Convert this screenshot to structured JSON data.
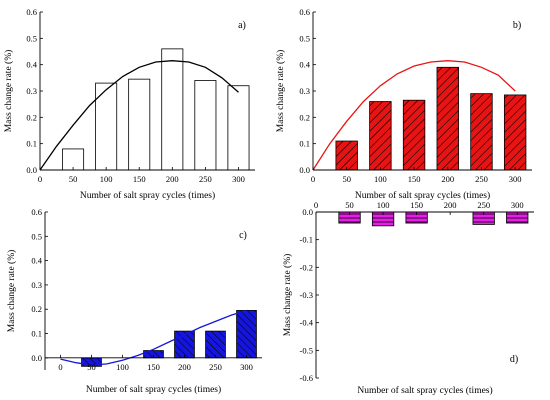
{
  "chart_data": [
    {
      "panel_label": "a)",
      "type": "bar",
      "xlabel": "Number of salt spray cycles (times)",
      "ylabel": "Mass change rate (%)",
      "x_ticks": [
        0,
        50,
        100,
        150,
        200,
        250,
        300
      ],
      "y_ticks": [
        0.0,
        0.1,
        0.2,
        0.3,
        0.4,
        0.5,
        0.6
      ],
      "xlim": [
        0,
        325
      ],
      "ylim": [
        0,
        0.6
      ],
      "bars": {
        "x": [
          50,
          100,
          150,
          200,
          250,
          300
        ],
        "values": [
          0.08,
          0.33,
          0.345,
          0.46,
          0.34,
          0.32
        ]
      },
      "fit": {
        "x": [
          0,
          25,
          50,
          75,
          100,
          125,
          150,
          175,
          200,
          225,
          250,
          275,
          300
        ],
        "y": [
          0.0,
          0.09,
          0.17,
          0.245,
          0.305,
          0.355,
          0.39,
          0.41,
          0.415,
          0.41,
          0.39,
          0.35,
          0.295
        ]
      },
      "style": {
        "bar_fill": "#ffffff",
        "bar_stroke": "#000000",
        "hatch": false,
        "fit_color": "#000000"
      }
    },
    {
      "panel_label": "b)",
      "type": "bar",
      "xlabel": "Number of salt spray cycles (times)",
      "ylabel": "Mass change rate (%)",
      "x_ticks": [
        0,
        50,
        100,
        150,
        200,
        250,
        300
      ],
      "y_ticks": [
        0.0,
        0.1,
        0.2,
        0.3,
        0.4,
        0.5,
        0.6
      ],
      "xlim": [
        0,
        325
      ],
      "ylim": [
        0,
        0.6
      ],
      "bars": {
        "x": [
          50,
          100,
          150,
          200,
          250,
          300
        ],
        "values": [
          0.11,
          0.26,
          0.265,
          0.39,
          0.29,
          0.285
        ]
      },
      "fit": {
        "x": [
          0,
          25,
          50,
          75,
          100,
          125,
          150,
          175,
          200,
          225,
          250,
          275,
          300
        ],
        "y": [
          0.0,
          0.1,
          0.185,
          0.26,
          0.32,
          0.365,
          0.395,
          0.41,
          0.415,
          0.41,
          0.39,
          0.36,
          0.3
        ]
      },
      "style": {
        "bar_fill": "#e81414",
        "bar_stroke": "#000000",
        "hatch": true,
        "fit_color": "#e81414"
      }
    },
    {
      "panel_label": "c)",
      "type": "bar",
      "xlabel": "Number of salt spray cycles (times)",
      "ylabel": "Mass change rate (%)",
      "x_ticks": [
        0,
        50,
        100,
        150,
        200,
        250,
        300
      ],
      "y_ticks": [
        0.0,
        0.1,
        0.2,
        0.3,
        0.4,
        0.5,
        0.6
      ],
      "xlim": [
        -25,
        325
      ],
      "ylim": [
        -0.05,
        0.6
      ],
      "bars": {
        "x": [
          50,
          150,
          200,
          250,
          300
        ],
        "values": [
          -0.035,
          0.03,
          0.11,
          0.11,
          0.195
        ]
      },
      "fit": {
        "x": [
          0,
          25,
          50,
          75,
          100,
          125,
          150,
          175,
          200,
          225,
          250,
          275,
          300
        ],
        "y": [
          -0.005,
          -0.02,
          -0.03,
          -0.025,
          -0.01,
          0.01,
          0.035,
          0.065,
          0.095,
          0.125,
          0.15,
          0.175,
          0.195
        ]
      },
      "style": {
        "bar_fill": "#1515dd",
        "bar_stroke": "#000000",
        "hatch": true,
        "fit_color": "#1515dd"
      }
    },
    {
      "panel_label": "d)",
      "type": "bar",
      "xlabel": "Number of salt spray cycles (times)",
      "ylabel": "Mass change rate (%)",
      "x_ticks": [
        0,
        50,
        100,
        150,
        200,
        250,
        300
      ],
      "y_ticks": [
        0.0,
        -0.1,
        -0.2,
        -0.3,
        -0.4,
        -0.5,
        -0.6
      ],
      "xlim": [
        0,
        325
      ],
      "ylim": [
        -0.6,
        0.0
      ],
      "bars": {
        "x": [
          50,
          100,
          150,
          250,
          300
        ],
        "values": [
          -0.04,
          -0.05,
          -0.04,
          -0.045,
          -0.04
        ]
      },
      "fit": null,
      "style": {
        "bar_fill": "#e81ee8",
        "bar_stroke": "#000000",
        "hatch": true,
        "fit_color": null
      }
    }
  ]
}
